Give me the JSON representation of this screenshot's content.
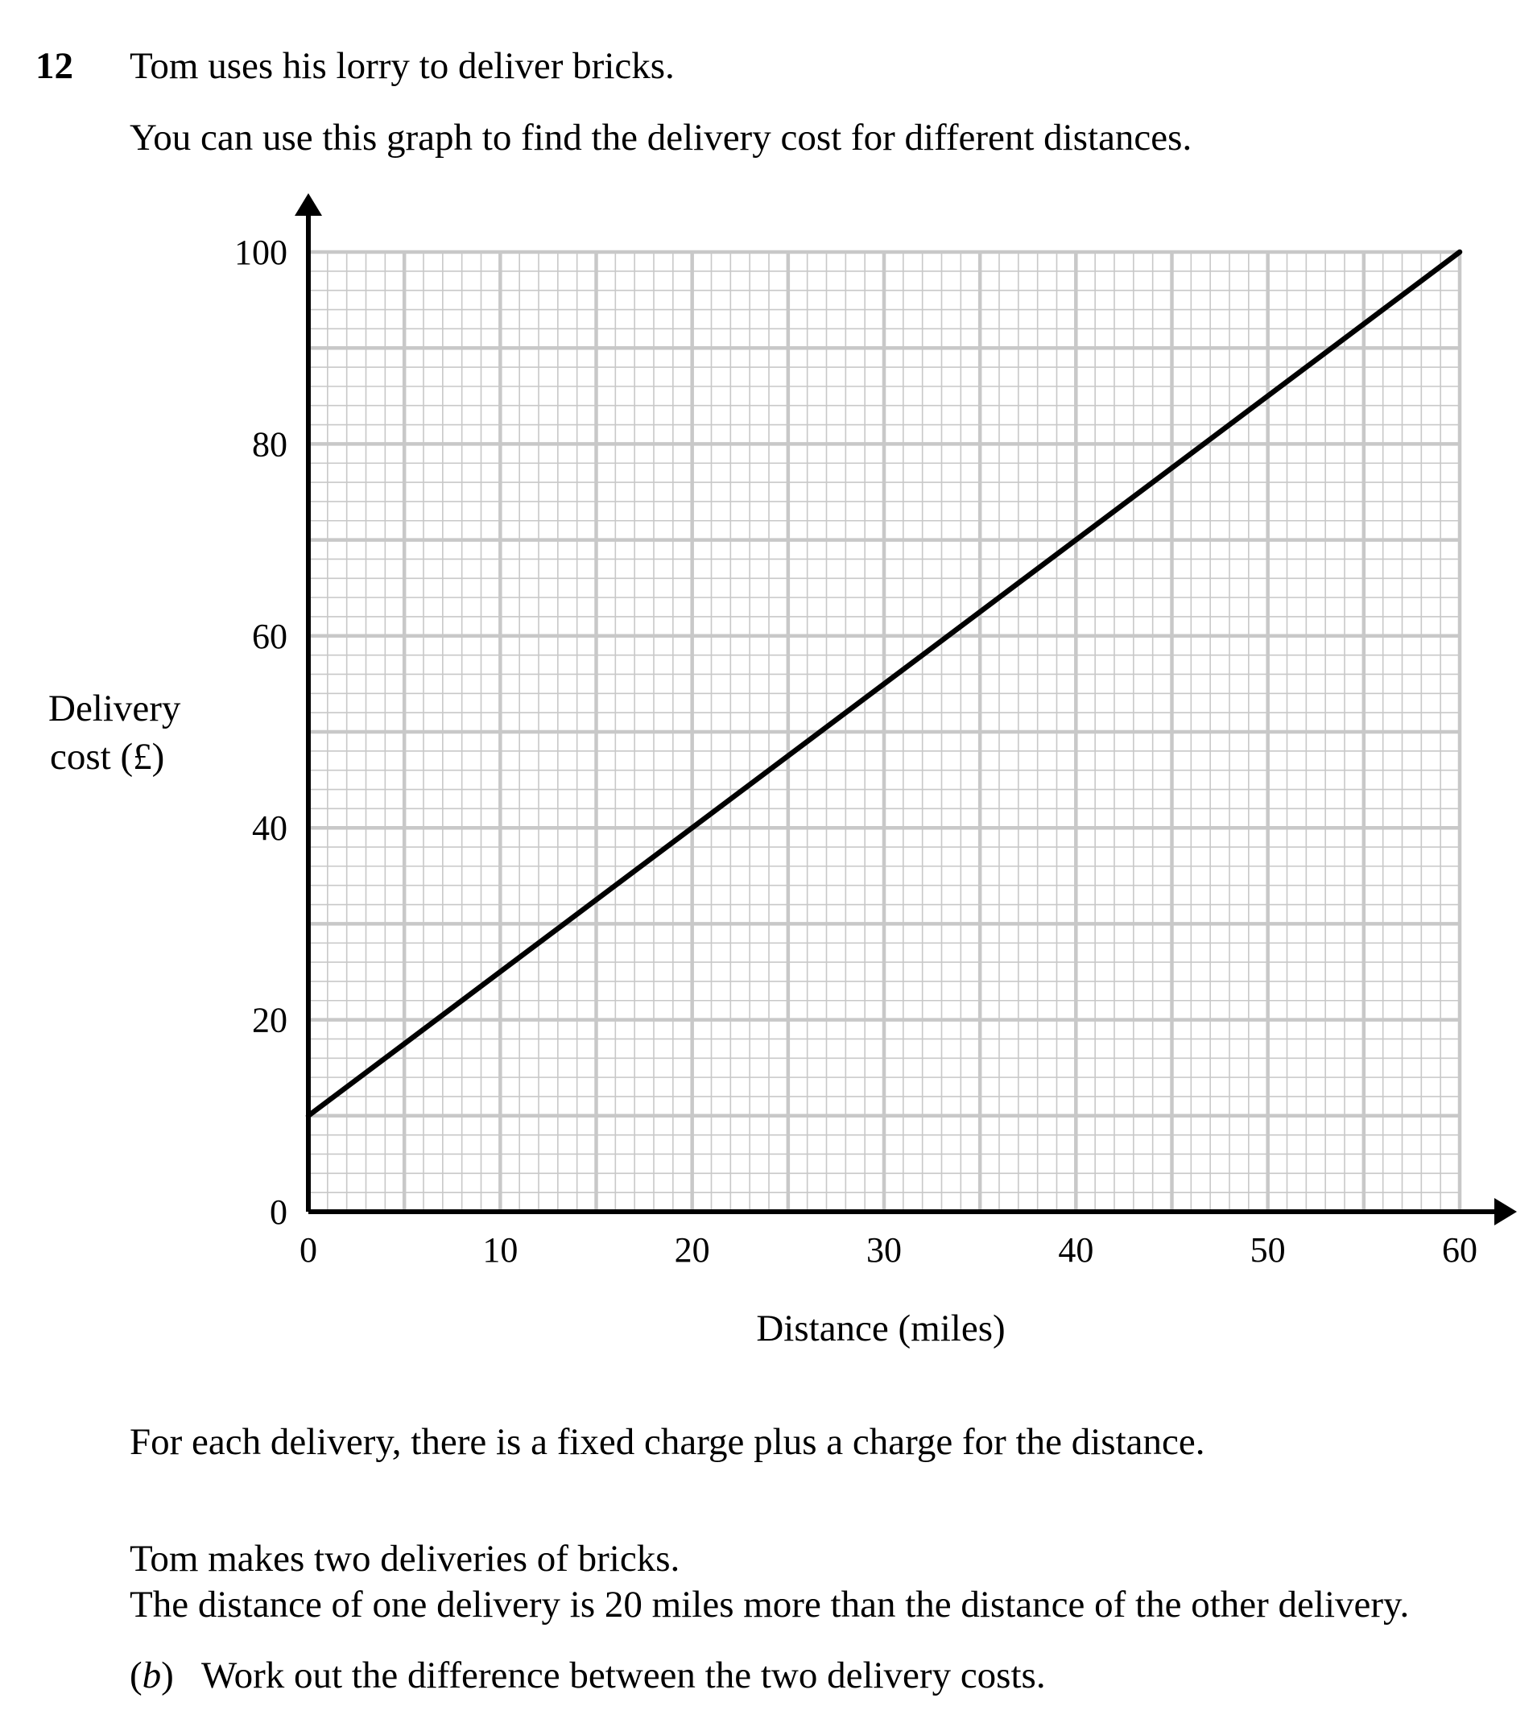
{
  "question": {
    "number": "12",
    "intro_line1": "Tom uses his lorry to deliver bricks.",
    "intro_line2": "You can use this graph to find the delivery cost for different distances.",
    "paragraph1": "For each delivery, there is a fixed charge plus a charge for the distance.",
    "paragraph2": "Tom makes two deliveries of bricks.",
    "paragraph3": "The distance of one delivery is 20 miles more than the distance of the other delivery.",
    "part_b_label_open": "(",
    "part_b_letter": "b",
    "part_b_label_close": ")",
    "part_b_text": "Work out the difference between the two delivery costs."
  },
  "chart_data": {
    "type": "line",
    "xlabel": "Distance (miles)",
    "ylabel_line1": "Delivery",
    "ylabel_line2": "cost (£)",
    "xlim": [
      0,
      60
    ],
    "ylim": [
      0,
      100
    ],
    "x_ticks": [
      0,
      10,
      20,
      30,
      40,
      50,
      60
    ],
    "y_ticks": [
      0,
      20,
      40,
      60,
      80,
      100
    ],
    "grid": true,
    "grid_minor_x_step": 1,
    "grid_minor_y_step": 2,
    "grid_major_x_step": 5,
    "grid_major_y_step": 10,
    "series": [
      {
        "x": [
          0,
          60
        ],
        "y": [
          10,
          100
        ],
        "color": "#000000"
      }
    ],
    "grid_color": "#c8c8c8",
    "axis_color": "#000000"
  }
}
